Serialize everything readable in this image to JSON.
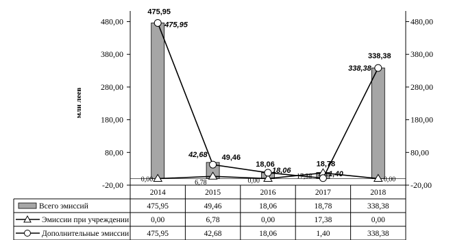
{
  "chart_data": {
    "type": "bar",
    "title": "",
    "xlabel": "",
    "ylabel": "млн леев",
    "ylim": [
      -20,
      500
    ],
    "yticks": [
      "480,00",
      "380,00",
      "280,00",
      "180,00",
      "80,00",
      "-20,00"
    ],
    "yticks_values": [
      480,
      380,
      280,
      180,
      80,
      -20
    ],
    "categories": [
      "2014",
      "2015",
      "2016",
      "2017",
      "2018"
    ],
    "series": [
      {
        "name": "Всего эмиссий",
        "kind": "bar",
        "values": [
          475.95,
          49.46,
          18.06,
          18.78,
          338.38
        ],
        "labels": [
          "475,95",
          "49,46",
          "18,06",
          "18,78",
          "338,38"
        ],
        "color": "#a6a6a6"
      },
      {
        "name": "Эмиссии при учреждении",
        "kind": "line",
        "marker": "triangle",
        "values": [
          0.0,
          6.78,
          0.0,
          17.38,
          0.0
        ],
        "labels": [
          "0,00",
          "6,78",
          "0,00",
          "17,38",
          "0,00"
        ],
        "color": "#000000"
      },
      {
        "name": "Дополнительные эмиссии",
        "kind": "line",
        "marker": "circle",
        "values": [
          475.95,
          42.68,
          18.06,
          1.4,
          338.38
        ],
        "labels": [
          "475,95",
          "42,68",
          "18,06",
          "1,40",
          "338,38"
        ],
        "color": "#000000"
      }
    ],
    "data_table": true,
    "legend": "in data table"
  }
}
